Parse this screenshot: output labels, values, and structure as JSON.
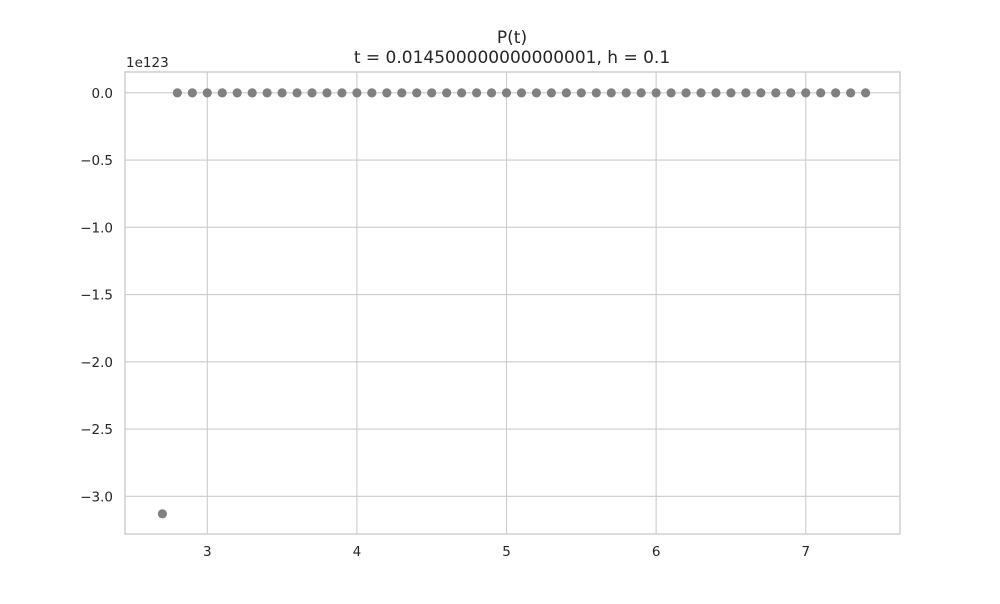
{
  "chart_data": {
    "type": "scatter",
    "title": "P(t)",
    "subtitle": "t = 0.014500000000000001, h = 0.1",
    "xlabel": "",
    "ylabel": "",
    "y_offset_label": "1e123",
    "xlim": [
      2.45,
      7.63
    ],
    "ylim": [
      -3.28,
      0.155
    ],
    "x_ticks": [
      3,
      4,
      5,
      6,
      7
    ],
    "x_tick_labels": [
      "3",
      "4",
      "5",
      "6",
      "7"
    ],
    "y_ticks": [
      0.0,
      -0.5,
      -1.0,
      -1.5,
      -2.0,
      -2.5,
      -3.0
    ],
    "y_tick_labels": [
      "0.0",
      "−0.5",
      "−1.0",
      "−1.5",
      "−2.0",
      "−2.5",
      "−3.0"
    ],
    "grid": true,
    "point_color": "#808080",
    "grid_color": "#cccccc",
    "spine_color": "#cccccc",
    "series": [
      {
        "x": [
          2.7,
          2.8,
          2.9,
          3.0,
          3.1,
          3.2,
          3.3,
          3.4,
          3.5,
          3.6,
          3.7,
          3.8,
          3.9,
          4.0,
          4.1,
          4.2,
          4.3,
          4.4,
          4.5,
          4.6,
          4.7,
          4.8,
          4.9,
          5.0,
          5.1,
          5.2,
          5.3,
          5.4,
          5.5,
          5.6,
          5.7,
          5.8,
          5.9,
          6.0,
          6.1,
          6.2,
          6.3,
          6.4,
          6.5,
          6.6,
          6.7,
          6.8,
          6.9,
          7.0,
          7.1,
          7.2,
          7.3,
          7.4
        ],
        "y": [
          -3.13,
          0,
          0,
          0,
          0,
          0,
          0,
          0,
          0,
          0,
          0,
          0,
          0,
          0,
          0,
          0,
          0,
          0,
          0,
          0,
          0,
          0,
          0,
          0,
          0,
          0,
          0,
          0,
          0,
          0,
          0,
          0,
          0,
          0,
          0,
          0,
          0,
          0,
          0,
          0,
          0,
          0,
          0,
          0,
          0,
          0,
          0,
          0
        ]
      }
    ]
  }
}
